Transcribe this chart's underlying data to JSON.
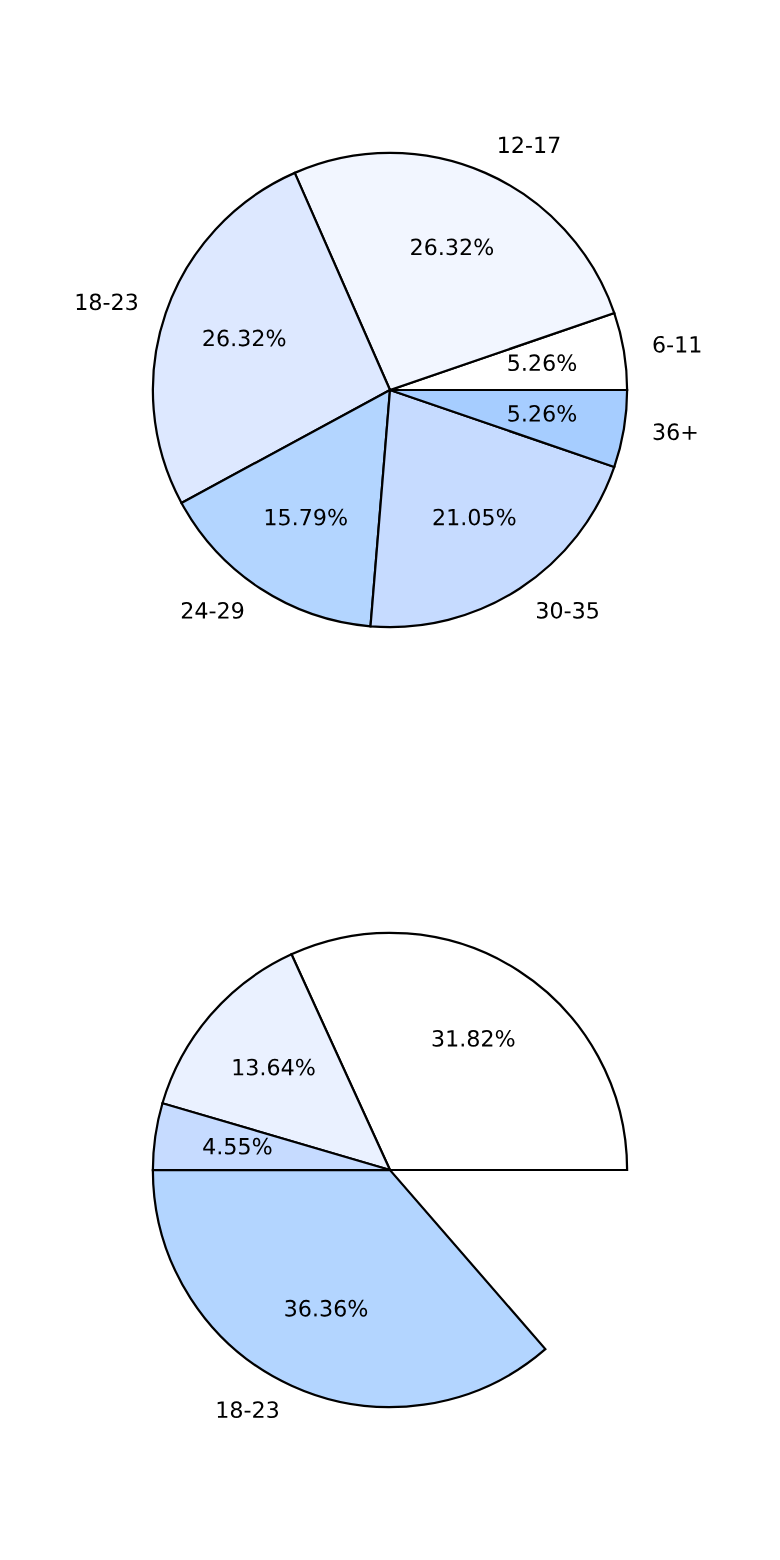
{
  "chart_data": [
    {
      "type": "pie",
      "categories": [
        "6-11",
        "12-17",
        "18-23",
        "24-29",
        "30-35",
        "36+"
      ],
      "values": [
        5.26,
        26.32,
        26.32,
        15.79,
        21.05,
        5.26
      ],
      "value_labels": [
        "5.26%",
        "26.32%",
        "26.32%",
        "15.79%",
        "21.05%",
        "5.26%"
      ],
      "colors": [
        "#ffffff",
        "#f2f6ff",
        "#dde8ff",
        "#b3d5ff",
        "#c6dbff",
        "#a6cdff"
      ]
    },
    {
      "type": "pie",
      "categories": [
        null,
        null,
        null,
        "18-23"
      ],
      "values": [
        31.82,
        13.64,
        4.55,
        36.36
      ],
      "value_labels": [
        "31.82%",
        "13.64%",
        "4.55%",
        "36.36%"
      ],
      "colors": [
        "#ffffff",
        "#eaf1ff",
        "#c6dbff",
        "#b3d5ff"
      ]
    }
  ]
}
